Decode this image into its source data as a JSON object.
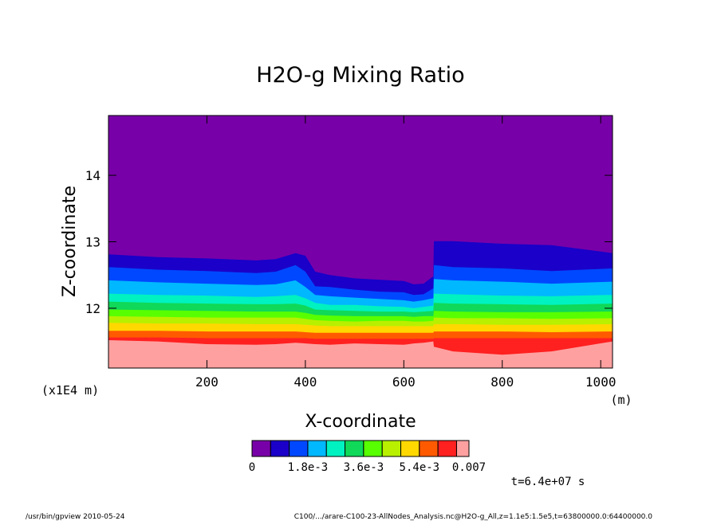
{
  "chart_data": {
    "type": "heatmap",
    "title": "H2O-g Mixing Ratio",
    "xlabel": "X-coordinate",
    "x_unit": "(m)",
    "ylabel": "Z-coordinate",
    "y_unit": "(x1E4 m)",
    "xlim": [
      0,
      1024
    ],
    "ylim": [
      11.1,
      14.9
    ],
    "x_ticks": [
      200,
      400,
      600,
      800,
      1000
    ],
    "x_tick_labels": [
      "200",
      "400",
      "600",
      "800",
      "1000"
    ],
    "y_ticks": [
      12,
      13,
      14
    ],
    "y_tick_labels": [
      "12",
      "13",
      "14"
    ],
    "colorbar": {
      "levels": [
        0,
        0.0006,
        0.0012,
        0.0018,
        0.0024,
        0.003,
        0.0036,
        0.0042,
        0.0048,
        0.0054,
        0.006,
        0.0066,
        0.007
      ],
      "colors": [
        "#7800a8",
        "#1a00c8",
        "#0048ff",
        "#00b8ff",
        "#00f2c0",
        "#10d858",
        "#58ff00",
        "#b8f000",
        "#ffd800",
        "#ff5a00",
        "#ff2020",
        "#ffa0a0"
      ],
      "labels": [
        "0",
        "1.8e-3",
        "3.6e-3",
        "5.4e-3",
        "0.007"
      ],
      "label_values": [
        0,
        0.0018,
        0.0036,
        0.0054,
        0.007
      ]
    },
    "field_x": [
      0,
      100,
      200,
      300,
      340,
      380,
      400,
      420,
      450,
      500,
      550,
      600,
      620,
      640,
      660,
      661,
      700,
      800,
      900,
      1024
    ],
    "contour_heights": [
      {
        "level": 0.0006,
        "z": [
          12.81,
          12.77,
          12.75,
          12.72,
          12.74,
          12.83,
          12.79,
          12.55,
          12.5,
          12.45,
          12.43,
          12.41,
          12.36,
          12.37,
          12.48,
          13.01,
          13.01,
          12.97,
          12.95,
          12.83
        ]
      },
      {
        "level": 0.0012,
        "z": [
          12.62,
          12.58,
          12.56,
          12.53,
          12.55,
          12.65,
          12.55,
          12.33,
          12.32,
          12.28,
          12.25,
          12.24,
          12.2,
          12.21,
          12.3,
          12.65,
          12.62,
          12.6,
          12.56,
          12.6
        ]
      },
      {
        "level": 0.0018,
        "z": [
          12.42,
          12.39,
          12.37,
          12.35,
          12.36,
          12.42,
          12.32,
          12.2,
          12.18,
          12.16,
          12.14,
          12.12,
          12.1,
          12.12,
          12.15,
          12.44,
          12.42,
          12.4,
          12.37,
          12.4
        ]
      },
      {
        "level": 0.0024,
        "z": [
          12.22,
          12.2,
          12.19,
          12.17,
          12.18,
          12.2,
          12.15,
          12.08,
          12.05,
          12.05,
          12.03,
          12.02,
          12.0,
          12.02,
          12.04,
          12.22,
          12.21,
          12.19,
          12.18,
          12.2
        ]
      },
      {
        "level": 0.003,
        "z": [
          12.1,
          12.08,
          12.07,
          12.06,
          12.06,
          12.07,
          12.04,
          11.98,
          11.97,
          11.96,
          11.95,
          11.95,
          11.94,
          11.95,
          11.96,
          12.08,
          12.07,
          12.06,
          12.05,
          12.07
        ]
      },
      {
        "level": 0.0036,
        "z": [
          11.98,
          11.97,
          11.96,
          11.95,
          11.95,
          11.95,
          11.93,
          11.9,
          11.89,
          11.88,
          11.88,
          11.88,
          11.87,
          11.88,
          11.88,
          11.96,
          11.95,
          11.94,
          11.94,
          11.95
        ]
      },
      {
        "level": 0.0042,
        "z": [
          11.88,
          11.87,
          11.86,
          11.86,
          11.86,
          11.86,
          11.84,
          11.82,
          11.81,
          11.8,
          11.81,
          11.81,
          11.8,
          11.8,
          11.81,
          11.86,
          11.85,
          11.85,
          11.84,
          11.85
        ]
      },
      {
        "level": 0.0048,
        "z": [
          11.78,
          11.77,
          11.77,
          11.76,
          11.76,
          11.76,
          11.75,
          11.74,
          11.73,
          11.73,
          11.73,
          11.73,
          11.73,
          11.73,
          11.73,
          11.76,
          11.76,
          11.75,
          11.75,
          11.76
        ]
      },
      {
        "level": 0.0054,
        "z": [
          11.66,
          11.66,
          11.65,
          11.65,
          11.65,
          11.65,
          11.64,
          11.63,
          11.63,
          11.63,
          11.63,
          11.63,
          11.63,
          11.63,
          11.63,
          11.65,
          11.65,
          11.65,
          11.64,
          11.65
        ]
      },
      {
        "level": 0.006,
        "z": [
          11.56,
          11.56,
          11.55,
          11.55,
          11.55,
          11.55,
          11.55,
          11.54,
          11.54,
          11.54,
          11.54,
          11.54,
          11.54,
          11.54,
          11.54,
          11.55,
          11.55,
          11.55,
          11.55,
          11.55
        ]
      },
      {
        "level": 0.0066,
        "z": [
          11.52,
          11.5,
          11.46,
          11.45,
          11.46,
          11.48,
          11.47,
          11.46,
          11.45,
          11.47,
          11.46,
          11.45,
          11.47,
          11.48,
          11.5,
          11.42,
          11.35,
          11.3,
          11.35,
          11.5
        ]
      }
    ]
  },
  "labels": {
    "xunit": "(m)",
    "yunit": "(x1E4 m)",
    "time": "t=6.4e+07 s",
    "footer_left": "/usr/bin/gpview  2010-05-24",
    "footer_right": "C100/.../arare-C100-23-AllNodes_Analysis.nc@H2O-g_All,z=1.1e5:1.5e5,t=63800000.0:64400000.0"
  }
}
